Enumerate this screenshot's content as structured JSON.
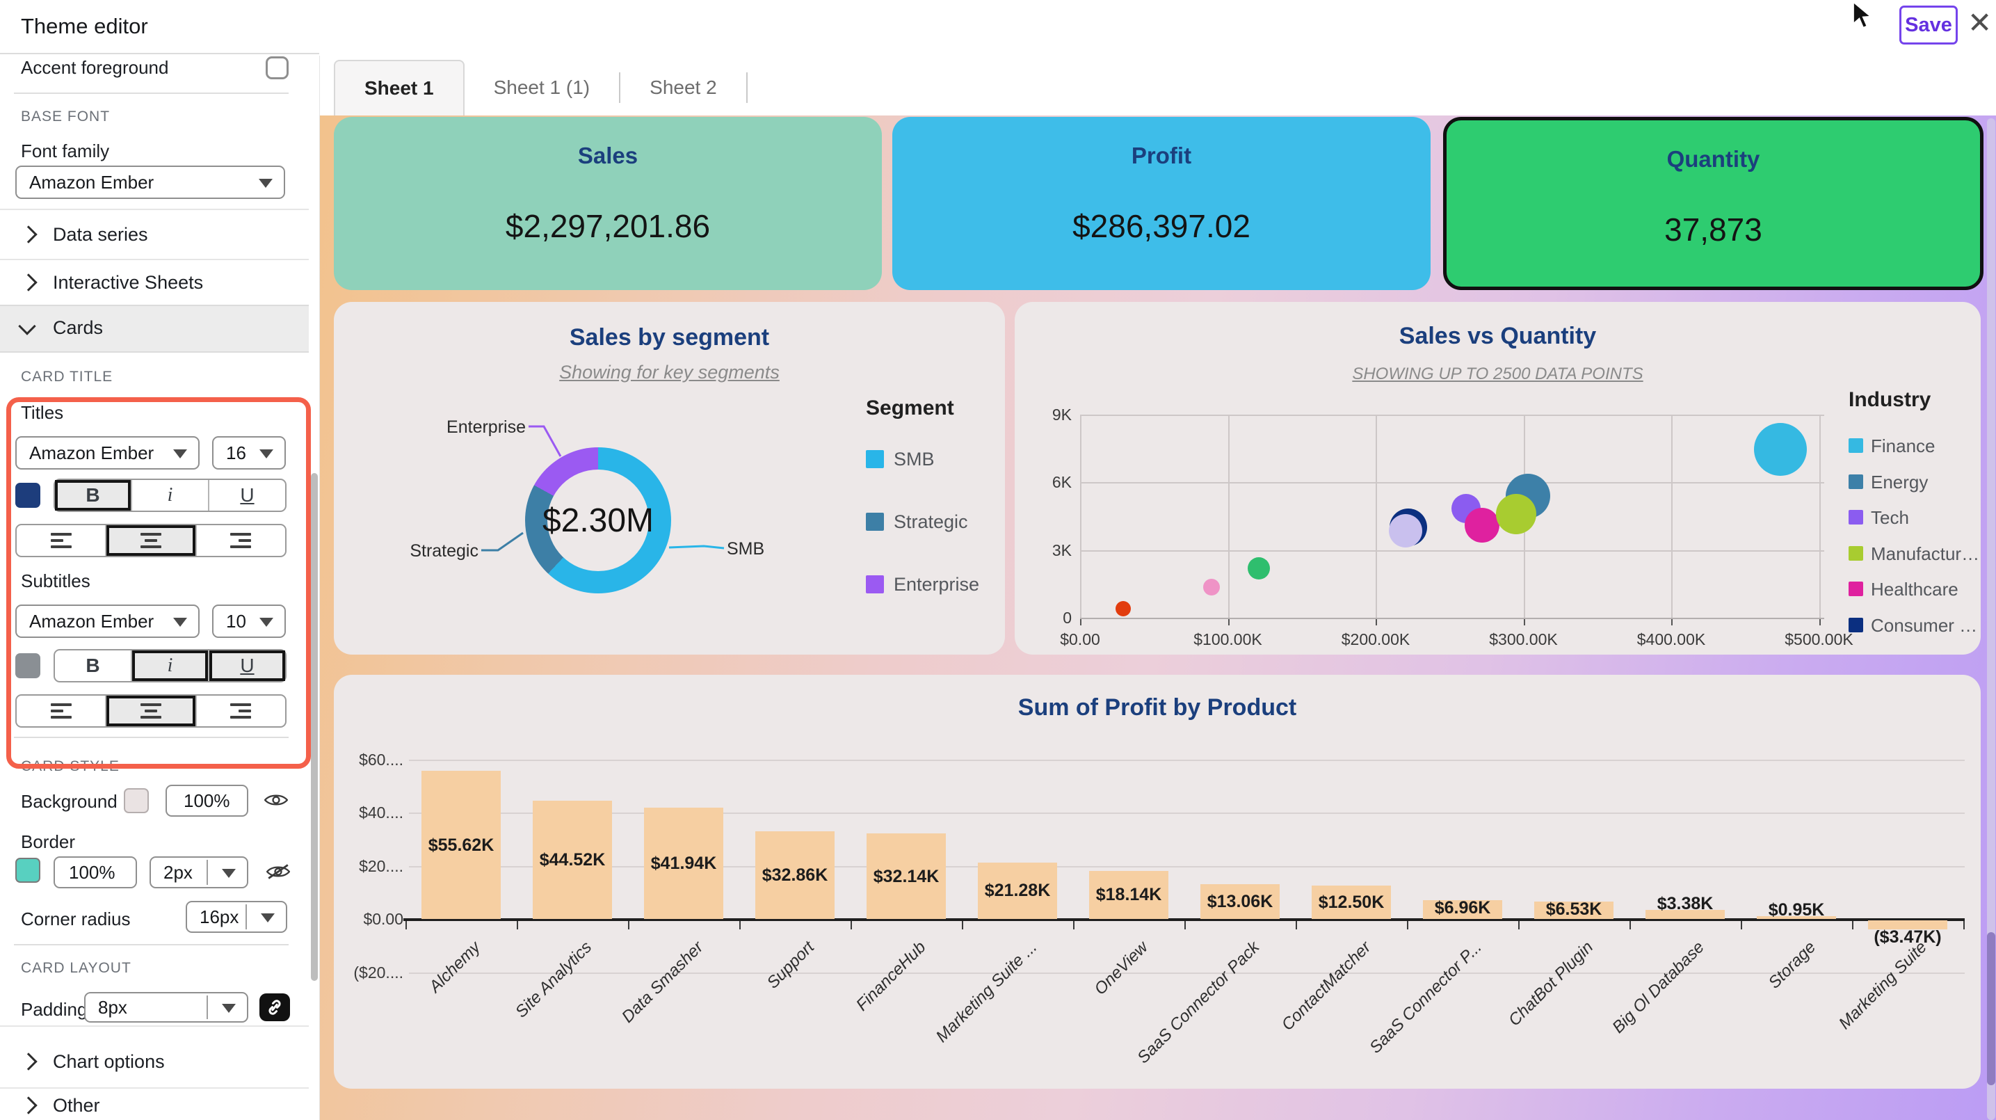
{
  "header": {
    "title": "Theme editor",
    "save": "Save",
    "close": "✕"
  },
  "sidebar": {
    "accent_foreground": "Accent foreground",
    "base_font_section": "BASE FONT",
    "font_family_label": "Font family",
    "font_family_value": "Amazon Ember",
    "data_series": "Data series",
    "interactive_sheets": "Interactive Sheets",
    "cards": "Cards",
    "card_title_section": "CARD TITLE",
    "titles_label": "Titles",
    "titles_font": "Amazon Ember",
    "titles_size": "16",
    "titles_color": "#1d3d7c",
    "subtitles_label": "Subtitles",
    "subtitles_font": "Amazon Ember",
    "subtitles_size": "10",
    "subtitles_color": "#8a8f94",
    "format": {
      "bold": "B",
      "italic": "i",
      "underline": "U"
    },
    "card_style_section": "CARD STYLE",
    "background_label": "Background",
    "background_opacity": "100%",
    "background_swatch": "#eae3e3",
    "border_label": "Border",
    "border_opacity": "100%",
    "border_width": "2px",
    "border_swatch": "#58d0c0",
    "corner_radius_label": "Corner radius",
    "corner_radius_value": "16px",
    "card_layout_section": "CARD LAYOUT",
    "padding_label": "Padding",
    "padding_value": "8px",
    "chart_options": "Chart options",
    "other": "Other",
    "highlight_color": "#f4604a"
  },
  "tabs": [
    {
      "label": "Sheet 1",
      "active": true
    },
    {
      "label": "Sheet 1 (1)",
      "active": false
    },
    {
      "label": "Sheet 2",
      "active": false
    }
  ],
  "kpis": [
    {
      "title": "Sales",
      "value": "$2,297,201.86",
      "bg": "#8fd1ba",
      "selected": false
    },
    {
      "title": "Profit",
      "value": "$286,397.02",
      "bg": "#3ebde9",
      "selected": false
    },
    {
      "title": "Quantity",
      "value": "37,873",
      "bg": "#2ecc70",
      "selected": true
    }
  ],
  "chart_data": [
    {
      "type": "pie",
      "title": "Sales by segment",
      "subtitle": "Showing for key segments",
      "center_label": "$2.30M",
      "legend_title": "Segment",
      "slices": [
        {
          "name": "SMB",
          "pct": 62,
          "color": "#29b5e8"
        },
        {
          "name": "Strategic",
          "pct": 21,
          "color": "#3d7fa6"
        },
        {
          "name": "Enterprise",
          "pct": 17,
          "color": "#9b5af2"
        }
      ]
    },
    {
      "type": "scatter",
      "title": "Sales vs Quantity",
      "subtitle": "SHOWING UP TO 2500 DATA POINTS",
      "legend_title": "Industry",
      "x_ticks": [
        "$0.00",
        "$100.00K",
        "$200.00K",
        "$300.00K",
        "$400.00K",
        "$500.00K"
      ],
      "y_ticks": [
        "0",
        "3K",
        "6K",
        "9K"
      ],
      "x_range_dollars_k": [
        0,
        500
      ],
      "y_range_units": [
        0,
        9000
      ],
      "legend": [
        {
          "name": "Finance",
          "color": "#35b9e2"
        },
        {
          "name": "Energy",
          "color": "#3d80a8"
        },
        {
          "name": "Tech",
          "color": "#8b5cf0"
        },
        {
          "name": "Manufactur…",
          "color": "#a8cc30"
        },
        {
          "name": "Healthcare",
          "color": "#df219f"
        },
        {
          "name": "Consumer …",
          "color": "#0b2f80"
        }
      ],
      "points": [
        {
          "industry": "Consumer …",
          "sales_k": 222,
          "quantity": 4000,
          "r": 27,
          "color": "#0b2f80"
        },
        {
          "industry": "",
          "sales_k": 220,
          "quantity": 3850,
          "r": 24,
          "color": "#c9c0ee"
        },
        {
          "industry": "Energy",
          "sales_k": 303,
          "quantity": 5400,
          "r": 32,
          "color": "#3d80a8"
        },
        {
          "industry": "Tech",
          "sales_k": 261,
          "quantity": 4850,
          "r": 21,
          "color": "#8b5cf0"
        },
        {
          "industry": "Healthcare",
          "sales_k": 272,
          "quantity": 4100,
          "r": 25,
          "color": "#df219f"
        },
        {
          "industry": "Manufactur…",
          "sales_k": 295,
          "quantity": 4600,
          "r": 29,
          "color": "#a8cc30"
        },
        {
          "industry": "Finance",
          "sales_k": 474,
          "quantity": 7450,
          "r": 38,
          "color": "#35b9e2"
        },
        {
          "industry": "",
          "sales_k": 121,
          "quantity": 2200,
          "r": 16,
          "color": "#2fbe6e"
        },
        {
          "industry": "",
          "sales_k": 89,
          "quantity": 1350,
          "r": 12,
          "color": "#ef93c6"
        },
        {
          "industry": "",
          "sales_k": 29,
          "quantity": 400,
          "r": 11,
          "color": "#e23c0e"
        }
      ]
    },
    {
      "type": "bar",
      "title": "Sum of Profit by Product",
      "bar_color": "#f6cfa2",
      "y_ticks": [
        "$60....",
        "$40....",
        "$20....",
        "$0.00",
        "($20...."
      ],
      "categories": [
        "Alchemy",
        "Site Analytics",
        "Data Smasher",
        "Support",
        "FinanceHub",
        "Marketing Suite ...",
        "OneView",
        "SaaS Connector Pack",
        "ContactMatcher",
        "SaaS Connector P...",
        "ChatBot Plugin",
        "Big Ol Database",
        "Storage",
        "Marketing Suite"
      ],
      "values": [
        55.62,
        44.52,
        41.94,
        32.86,
        32.14,
        21.28,
        18.14,
        13.06,
        12.5,
        6.96,
        6.53,
        3.38,
        0.95,
        -3.47
      ],
      "labels": [
        "$55.62K",
        "$44.52K",
        "$41.94K",
        "$32.86K",
        "$32.14K",
        "$21.28K",
        "$18.14K",
        "$13.06K",
        "$12.50K",
        "$6.96K",
        "$6.53K",
        "$3.38K",
        "$0.95K",
        "($3.47K)"
      ]
    }
  ]
}
